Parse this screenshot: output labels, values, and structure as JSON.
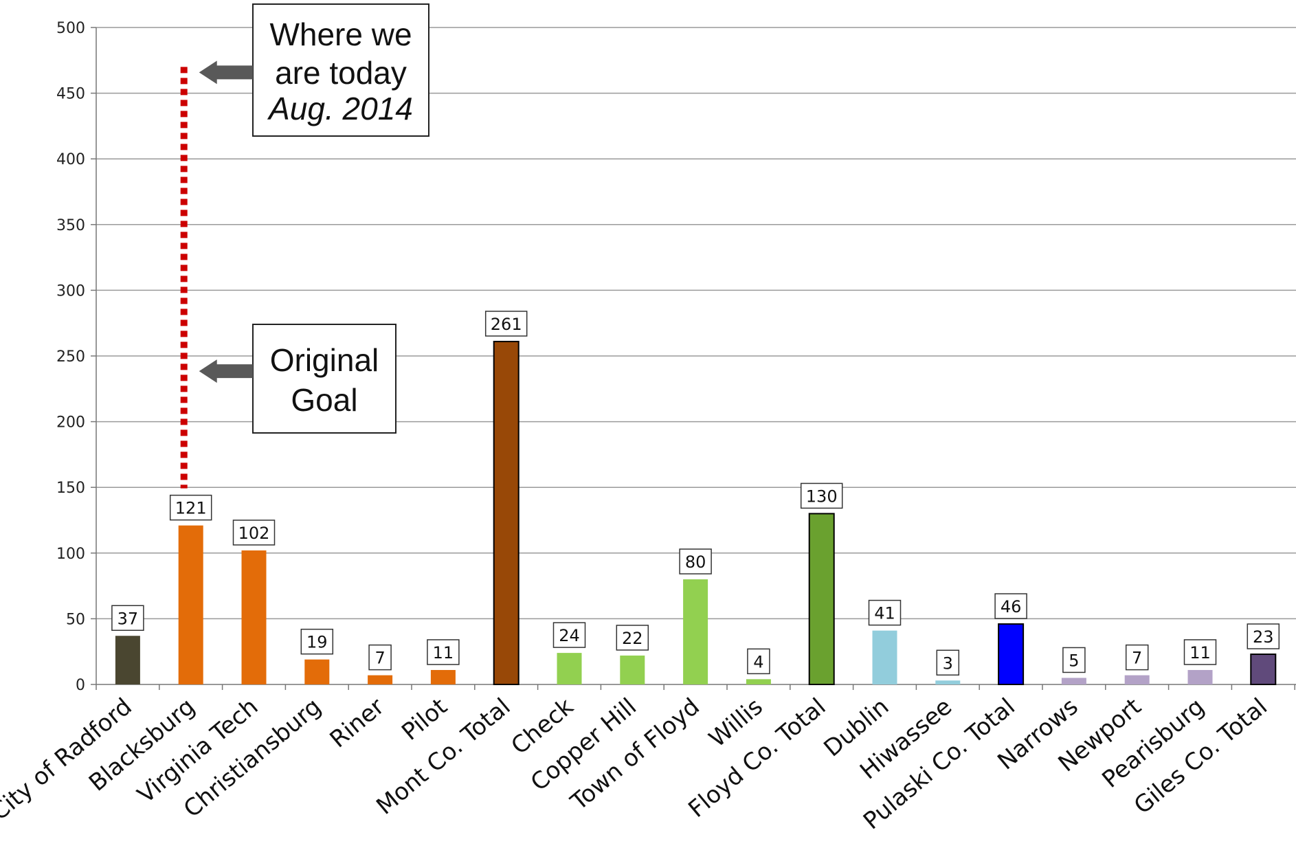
{
  "chart_data": {
    "type": "bar",
    "title": "",
    "xlabel": "",
    "ylabel": "",
    "ylim": [
      0,
      500
    ],
    "yticks": [
      0,
      50,
      100,
      150,
      200,
      250,
      300,
      350,
      400,
      450,
      500
    ],
    "grid": true,
    "categories": [
      "City of Radford",
      "Blacksburg",
      "Virginia Tech",
      "Christiansburg",
      "Riner",
      "Pilot",
      "Mont Co. Total",
      "Check",
      "Copper Hill",
      "Town of Floyd",
      "Willis",
      "Floyd Co. Total",
      "Dublin",
      "Hiwassee",
      "Pulaski Co. Total",
      "Narrows",
      "Newport",
      "Pearisburg",
      "Giles Co. Total"
    ],
    "values": [
      37,
      121,
      102,
      19,
      7,
      11,
      261,
      24,
      22,
      80,
      4,
      130,
      41,
      3,
      46,
      5,
      7,
      11,
      23
    ],
    "data_labels": [
      "37",
      "121",
      "102",
      "19",
      "7",
      "11",
      "261",
      "24",
      "22",
      "80",
      "4",
      "130",
      "41",
      "3",
      "46",
      "5",
      "7",
      "11",
      "23"
    ],
    "colors": [
      "#4a4630",
      "#e36c09",
      "#e36c09",
      "#e36c09",
      "#e36c09",
      "#e36c09",
      "#984807",
      "#92d050",
      "#92d050",
      "#92d050",
      "#92d050",
      "#6aa12f",
      "#92cddc",
      "#92cddc",
      "#0000ff",
      "#b3a2c7",
      "#b3a2c7",
      "#b3a2c7",
      "#604a7b"
    ],
    "outlined": [
      false,
      false,
      false,
      false,
      false,
      false,
      true,
      false,
      false,
      false,
      false,
      true,
      false,
      false,
      true,
      false,
      false,
      false,
      true
    ],
    "annotations": {
      "today_marker": {
        "value": 470,
        "category": "Blacksburg",
        "line_color": "#cc0000",
        "style": "dotted"
      },
      "today_callout": {
        "line1": "Where we",
        "line2": "are today",
        "line3": "Aug. 2014",
        "points_to_value": 470
      },
      "goal_callout": {
        "line1": "Original",
        "line2": "Goal",
        "points_to_value": 240
      }
    }
  }
}
